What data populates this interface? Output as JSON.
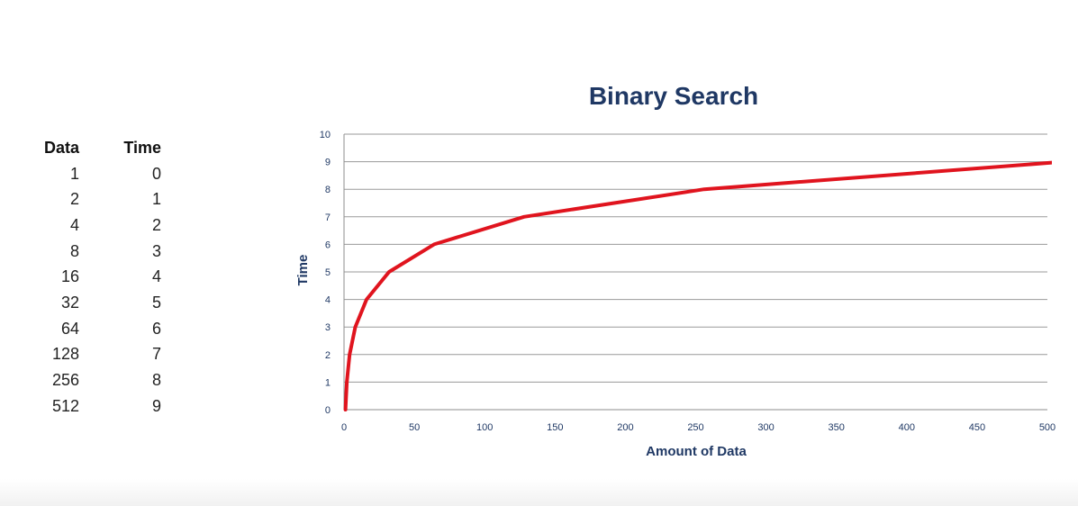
{
  "table": {
    "headers": [
      "Data",
      "Time"
    ],
    "rows": [
      [
        "1",
        "0"
      ],
      [
        "2",
        "1"
      ],
      [
        "4",
        "2"
      ],
      [
        "8",
        "3"
      ],
      [
        "16",
        "4"
      ],
      [
        "32",
        "5"
      ],
      [
        "64",
        "6"
      ],
      [
        "128",
        "7"
      ],
      [
        "256",
        "8"
      ],
      [
        "512",
        "9"
      ]
    ]
  },
  "chart_data": {
    "type": "line",
    "title": "Binary Search",
    "xlabel": "Amount of Data",
    "ylabel": "Time",
    "xlim": [
      0,
      500
    ],
    "ylim": [
      0,
      10
    ],
    "xticks": [
      0,
      50,
      100,
      150,
      200,
      250,
      300,
      350,
      400,
      450,
      500
    ],
    "yticks": [
      0,
      1,
      2,
      3,
      4,
      5,
      6,
      7,
      8,
      9,
      10
    ],
    "grid": "horizontal",
    "series": [
      {
        "color": "#e0141e",
        "x": [
          1,
          2,
          4,
          8,
          16,
          32,
          64,
          128,
          256,
          512
        ],
        "y": [
          0,
          1,
          2,
          3,
          4,
          5,
          6,
          7,
          8,
          9
        ]
      }
    ]
  }
}
